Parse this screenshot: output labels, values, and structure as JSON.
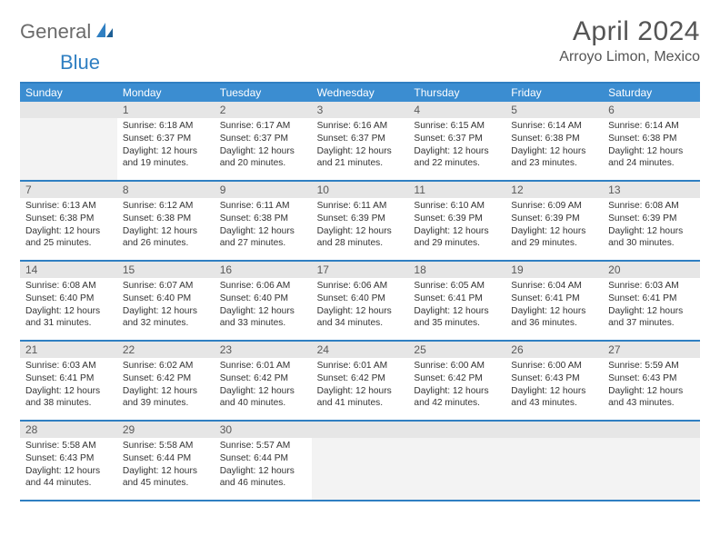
{
  "brand": {
    "part1": "General",
    "part2": "Blue"
  },
  "title": "April 2024",
  "location": "Arroyo Limon, Mexico",
  "colors": {
    "accent": "#2f7fc2",
    "header_bg": "#3b8dd1",
    "daynum_bg": "#e6e6e6",
    "text": "#333333"
  },
  "dow": [
    "Sunday",
    "Monday",
    "Tuesday",
    "Wednesday",
    "Thursday",
    "Friday",
    "Saturday"
  ],
  "weeks": [
    [
      null,
      {
        "n": "1",
        "sr": "Sunrise: 6:18 AM",
        "ss": "Sunset: 6:37 PM",
        "dl": "Daylight: 12 hours and 19 minutes."
      },
      {
        "n": "2",
        "sr": "Sunrise: 6:17 AM",
        "ss": "Sunset: 6:37 PM",
        "dl": "Daylight: 12 hours and 20 minutes."
      },
      {
        "n": "3",
        "sr": "Sunrise: 6:16 AM",
        "ss": "Sunset: 6:37 PM",
        "dl": "Daylight: 12 hours and 21 minutes."
      },
      {
        "n": "4",
        "sr": "Sunrise: 6:15 AM",
        "ss": "Sunset: 6:37 PM",
        "dl": "Daylight: 12 hours and 22 minutes."
      },
      {
        "n": "5",
        "sr": "Sunrise: 6:14 AM",
        "ss": "Sunset: 6:38 PM",
        "dl": "Daylight: 12 hours and 23 minutes."
      },
      {
        "n": "6",
        "sr": "Sunrise: 6:14 AM",
        "ss": "Sunset: 6:38 PM",
        "dl": "Daylight: 12 hours and 24 minutes."
      }
    ],
    [
      {
        "n": "7",
        "sr": "Sunrise: 6:13 AM",
        "ss": "Sunset: 6:38 PM",
        "dl": "Daylight: 12 hours and 25 minutes."
      },
      {
        "n": "8",
        "sr": "Sunrise: 6:12 AM",
        "ss": "Sunset: 6:38 PM",
        "dl": "Daylight: 12 hours and 26 minutes."
      },
      {
        "n": "9",
        "sr": "Sunrise: 6:11 AM",
        "ss": "Sunset: 6:38 PM",
        "dl": "Daylight: 12 hours and 27 minutes."
      },
      {
        "n": "10",
        "sr": "Sunrise: 6:11 AM",
        "ss": "Sunset: 6:39 PM",
        "dl": "Daylight: 12 hours and 28 minutes."
      },
      {
        "n": "11",
        "sr": "Sunrise: 6:10 AM",
        "ss": "Sunset: 6:39 PM",
        "dl": "Daylight: 12 hours and 29 minutes."
      },
      {
        "n": "12",
        "sr": "Sunrise: 6:09 AM",
        "ss": "Sunset: 6:39 PM",
        "dl": "Daylight: 12 hours and 29 minutes."
      },
      {
        "n": "13",
        "sr": "Sunrise: 6:08 AM",
        "ss": "Sunset: 6:39 PM",
        "dl": "Daylight: 12 hours and 30 minutes."
      }
    ],
    [
      {
        "n": "14",
        "sr": "Sunrise: 6:08 AM",
        "ss": "Sunset: 6:40 PM",
        "dl": "Daylight: 12 hours and 31 minutes."
      },
      {
        "n": "15",
        "sr": "Sunrise: 6:07 AM",
        "ss": "Sunset: 6:40 PM",
        "dl": "Daylight: 12 hours and 32 minutes."
      },
      {
        "n": "16",
        "sr": "Sunrise: 6:06 AM",
        "ss": "Sunset: 6:40 PM",
        "dl": "Daylight: 12 hours and 33 minutes."
      },
      {
        "n": "17",
        "sr": "Sunrise: 6:06 AM",
        "ss": "Sunset: 6:40 PM",
        "dl": "Daylight: 12 hours and 34 minutes."
      },
      {
        "n": "18",
        "sr": "Sunrise: 6:05 AM",
        "ss": "Sunset: 6:41 PM",
        "dl": "Daylight: 12 hours and 35 minutes."
      },
      {
        "n": "19",
        "sr": "Sunrise: 6:04 AM",
        "ss": "Sunset: 6:41 PM",
        "dl": "Daylight: 12 hours and 36 minutes."
      },
      {
        "n": "20",
        "sr": "Sunrise: 6:03 AM",
        "ss": "Sunset: 6:41 PM",
        "dl": "Daylight: 12 hours and 37 minutes."
      }
    ],
    [
      {
        "n": "21",
        "sr": "Sunrise: 6:03 AM",
        "ss": "Sunset: 6:41 PM",
        "dl": "Daylight: 12 hours and 38 minutes."
      },
      {
        "n": "22",
        "sr": "Sunrise: 6:02 AM",
        "ss": "Sunset: 6:42 PM",
        "dl": "Daylight: 12 hours and 39 minutes."
      },
      {
        "n": "23",
        "sr": "Sunrise: 6:01 AM",
        "ss": "Sunset: 6:42 PM",
        "dl": "Daylight: 12 hours and 40 minutes."
      },
      {
        "n": "24",
        "sr": "Sunrise: 6:01 AM",
        "ss": "Sunset: 6:42 PM",
        "dl": "Daylight: 12 hours and 41 minutes."
      },
      {
        "n": "25",
        "sr": "Sunrise: 6:00 AM",
        "ss": "Sunset: 6:42 PM",
        "dl": "Daylight: 12 hours and 42 minutes."
      },
      {
        "n": "26",
        "sr": "Sunrise: 6:00 AM",
        "ss": "Sunset: 6:43 PM",
        "dl": "Daylight: 12 hours and 43 minutes."
      },
      {
        "n": "27",
        "sr": "Sunrise: 5:59 AM",
        "ss": "Sunset: 6:43 PM",
        "dl": "Daylight: 12 hours and 43 minutes."
      }
    ],
    [
      {
        "n": "28",
        "sr": "Sunrise: 5:58 AM",
        "ss": "Sunset: 6:43 PM",
        "dl": "Daylight: 12 hours and 44 minutes."
      },
      {
        "n": "29",
        "sr": "Sunrise: 5:58 AM",
        "ss": "Sunset: 6:44 PM",
        "dl": "Daylight: 12 hours and 45 minutes."
      },
      {
        "n": "30",
        "sr": "Sunrise: 5:57 AM",
        "ss": "Sunset: 6:44 PM",
        "dl": "Daylight: 12 hours and 46 minutes."
      },
      null,
      null,
      null,
      null
    ]
  ]
}
